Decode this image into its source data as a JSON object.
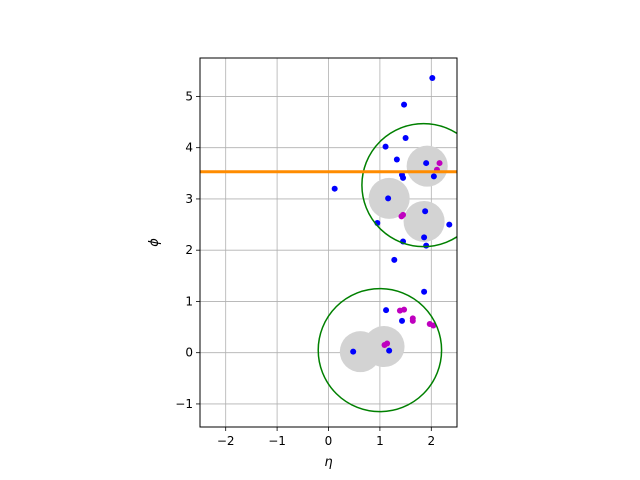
{
  "chart_data": {
    "type": "scatter",
    "title": "",
    "xlabel": "η",
    "ylabel": "ϕ",
    "xlim": [
      -2.5,
      2.5
    ],
    "ylim": [
      -1.45,
      5.75
    ],
    "grid": true,
    "x_ticks": [
      -2,
      -1,
      0,
      1,
      2
    ],
    "y_ticks": [
      -1,
      0,
      1,
      2,
      3,
      4,
      5
    ],
    "x_tick_labels": [
      "−2",
      "−1",
      "0",
      "1",
      "2"
    ],
    "y_tick_labels": [
      "−1",
      "0",
      "1",
      "2",
      "3",
      "4",
      "5"
    ],
    "horizontal_line": {
      "y": 3.53,
      "color": "#ff8c00"
    },
    "gray_disks": {
      "color": "#d3d3d3",
      "radius": 0.4,
      "centers": [
        [
          1.18,
          3.01
        ],
        [
          1.86,
          2.56
        ],
        [
          1.92,
          3.64
        ],
        [
          1.08,
          0.12
        ],
        [
          0.62,
          0.02
        ]
      ]
    },
    "rings": {
      "color": "#008000",
      "radius": 1.2,
      "centers": [
        [
          1.85,
          3.27
        ],
        [
          1.0,
          0.05
        ]
      ]
    },
    "series": [
      {
        "color": "#0000ff",
        "points": [
          [
            2.02,
            5.36
          ],
          [
            1.47,
            4.84
          ],
          [
            1.5,
            4.19
          ],
          [
            1.11,
            4.02
          ],
          [
            1.33,
            3.77
          ],
          [
            1.43,
            3.47
          ],
          [
            1.45,
            3.41
          ],
          [
            1.9,
            3.7
          ],
          [
            2.05,
            3.44
          ],
          [
            0.12,
            3.2
          ],
          [
            1.16,
            3.01
          ],
          [
            1.88,
            2.76
          ],
          [
            2.35,
            2.5
          ],
          [
            0.95,
            2.53
          ],
          [
            1.86,
            2.25
          ],
          [
            1.45,
            2.17
          ],
          [
            1.9,
            2.09
          ],
          [
            1.28,
            1.81
          ],
          [
            1.86,
            1.19
          ],
          [
            1.12,
            0.83
          ],
          [
            1.43,
            0.62
          ],
          [
            1.18,
            0.04
          ],
          [
            0.48,
            0.02
          ]
        ]
      },
      {
        "color": "#bf00bf",
        "points": [
          [
            2.16,
            3.7
          ],
          [
            2.11,
            3.57
          ],
          [
            1.45,
            2.69
          ],
          [
            1.42,
            2.66
          ],
          [
            1.47,
            0.84
          ],
          [
            1.39,
            0.82
          ],
          [
            1.64,
            0.67
          ],
          [
            1.64,
            0.62
          ],
          [
            1.97,
            0.56
          ],
          [
            2.04,
            0.53
          ],
          [
            1.14,
            0.18
          ],
          [
            1.09,
            0.15
          ]
        ]
      }
    ]
  }
}
